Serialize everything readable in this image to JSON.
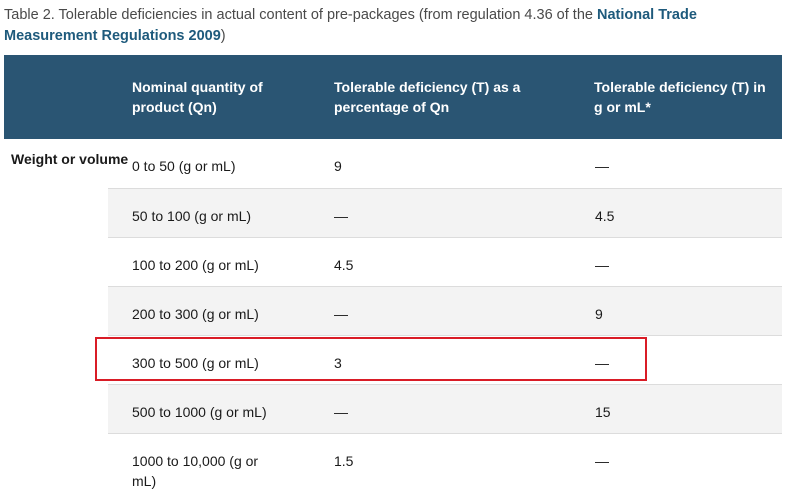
{
  "caption": {
    "prefix": "Table 2. Tolerable deficiencies in actual content of pre-packages (from regulation 4.36 of the ",
    "link": "National Trade Measurement Regulations 2009",
    "suffix": ")"
  },
  "headers": {
    "col1": "Nominal quantity of product (Qn)",
    "col2": "Tolerable deficiency (T) as a percentage of Qn",
    "col3": "Tolerable deficiency (T) in g or mL*"
  },
  "group_label": "Weight or volume",
  "rows": [
    {
      "qn": "0 to 50 (g or mL)",
      "percent": "9",
      "grams": "—"
    },
    {
      "qn": "50 to 100 (g or mL)",
      "percent": "—",
      "grams": "4.5"
    },
    {
      "qn": "100 to 200 (g or mL)",
      "percent": "4.5",
      "grams": "—"
    },
    {
      "qn": "200 to 300 (g or mL)",
      "percent": "—",
      "grams": "9"
    },
    {
      "qn": "300 to 500 (g or mL)",
      "percent": "3",
      "grams": "—"
    },
    {
      "qn": "500 to 1000 (g or mL)",
      "percent": "—",
      "grams": "15"
    },
    {
      "qn": "1000 to 10,000 (g or mL)",
      "percent": "1.5",
      "grams": "—"
    }
  ],
  "colors": {
    "header_bg": "#2a5573",
    "link": "#1e5a7c",
    "highlight": "#d91c26"
  }
}
